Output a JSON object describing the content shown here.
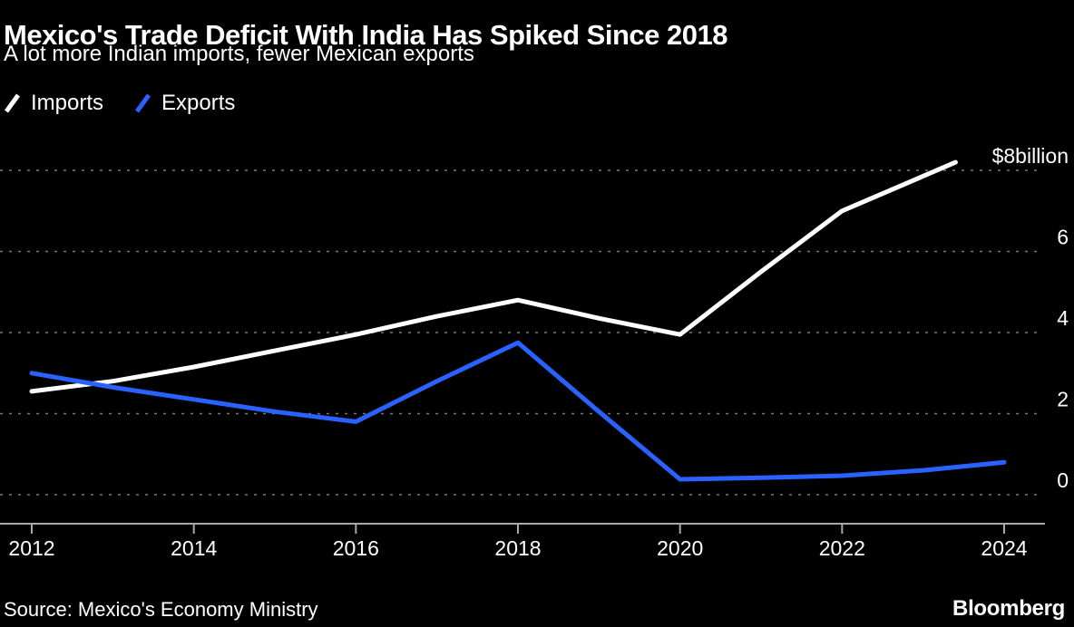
{
  "header": {
    "title": "Mexico's Trade Deficit With India Has Spiked Since 2018",
    "subtitle": "A lot more Indian imports, fewer Mexican exports"
  },
  "legend": {
    "items": [
      {
        "label": "Imports",
        "color": "#ffffff"
      },
      {
        "label": "Exports",
        "color": "#2962ff"
      }
    ]
  },
  "chart_data": {
    "type": "line",
    "title": "Mexico's Trade Deficit With India Has Spiked Since 2018",
    "subtitle": "A lot more Indian imports, fewer Mexican exports",
    "ylabel": "$ billion",
    "ylim": [
      0,
      8.6
    ],
    "xlim": [
      2012,
      2024.8
    ],
    "grid": "horizontal dashed",
    "legend_position": "top-left",
    "y_ticks": [
      {
        "value": 8,
        "label": "$8billion"
      },
      {
        "value": 6,
        "label": "6"
      },
      {
        "value": 4,
        "label": "4"
      },
      {
        "value": 2,
        "label": "2"
      },
      {
        "value": 0,
        "label": "0"
      }
    ],
    "x_ticks": [
      "2012",
      "2014",
      "2016",
      "2018",
      "2020",
      "2022",
      "2024"
    ],
    "series": [
      {
        "name": "Imports",
        "color": "#ffffff",
        "points": [
          [
            2012,
            2.55
          ],
          [
            2013,
            2.8
          ],
          [
            2014,
            3.15
          ],
          [
            2015,
            3.55
          ],
          [
            2016,
            3.95
          ],
          [
            2017,
            4.4
          ],
          [
            2018,
            4.8
          ],
          [
            2019,
            4.35
          ],
          [
            2020,
            3.95
          ],
          [
            2021,
            5.5
          ],
          [
            2022,
            7.0
          ],
          [
            2023.4,
            8.2
          ]
        ]
      },
      {
        "name": "Exports",
        "color": "#2962ff",
        "points": [
          [
            2012,
            3.0
          ],
          [
            2013,
            2.65
          ],
          [
            2014,
            2.35
          ],
          [
            2015,
            2.05
          ],
          [
            2016,
            1.8
          ],
          [
            2017,
            2.8
          ],
          [
            2018,
            3.75
          ],
          [
            2019,
            2.05
          ],
          [
            2020,
            0.38
          ],
          [
            2021,
            0.42
          ],
          [
            2022,
            0.47
          ],
          [
            2023,
            0.6
          ],
          [
            2024,
            0.8
          ]
        ]
      }
    ]
  },
  "footer": {
    "source": "Source: Mexico's Economy Ministry",
    "brand": "Bloomberg"
  }
}
